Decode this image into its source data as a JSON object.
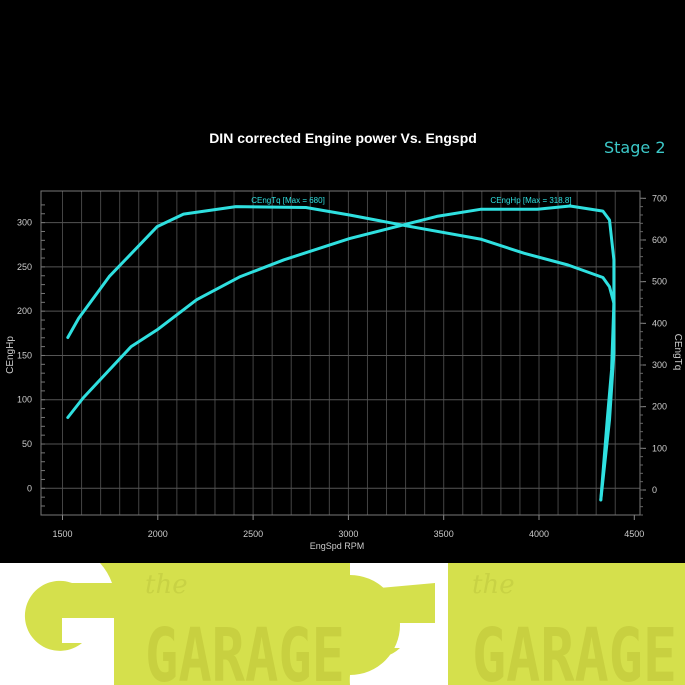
{
  "chart_data": {
    "type": "line",
    "title": "DIN corrected Engine power Vs. Engspd",
    "annotation": "Stage 2",
    "xlabel": "EngSpd RPM",
    "ylabel_left": "CEngHp",
    "ylabel_right": "CEngTq",
    "xlim": [
      1400,
      4500
    ],
    "ylim_left": [
      -30,
      330
    ],
    "ylim_right": [
      -70,
      710
    ],
    "x_ticks": [
      1500,
      2000,
      2500,
      3000,
      3500,
      4000,
      4500
    ],
    "y_ticks_left": [
      0,
      50,
      100,
      150,
      200,
      250,
      300
    ],
    "y_ticks_right": [
      0,
      100,
      200,
      300,
      400,
      500,
      600,
      700
    ],
    "grid": true,
    "line_color": "#2fe0e0",
    "series": [
      {
        "name": "CEngTq",
        "label": "CEngTq [Max = 680]",
        "axis": "right",
        "x": [
          1528,
          1585,
          1745,
          1997,
          2135,
          2410,
          2777,
          3006,
          3304,
          3693,
          3923,
          4152,
          4335,
          4370,
          4393,
          4393,
          4370,
          4324
        ],
        "y": [
          366,
          412,
          512,
          632,
          662,
          680,
          678,
          660,
          634,
          602,
          568,
          540,
          510,
          488,
          448,
          328,
          168,
          -24
        ]
      },
      {
        "name": "CEngHp",
        "label": "CEngHp [Max = 318.8]",
        "axis": "left",
        "x": [
          1528,
          1608,
          1860,
          1997,
          2204,
          2433,
          2662,
          3006,
          3189,
          3464,
          3693,
          3991,
          4163,
          4335,
          4370,
          4393,
          4393,
          4381,
          4358,
          4324
        ],
        "y": [
          80,
          102,
          160,
          179,
          213,
          239,
          258,
          282,
          292,
          307,
          315,
          315,
          318.8,
          313,
          303,
          258,
          209,
          134,
          77,
          -13
        ]
      }
    ]
  },
  "logo": {
    "small_text": "the",
    "big_text": "GARAGE",
    "colors": {
      "background": "#d5e04c",
      "letters": "#ffffff"
    }
  }
}
